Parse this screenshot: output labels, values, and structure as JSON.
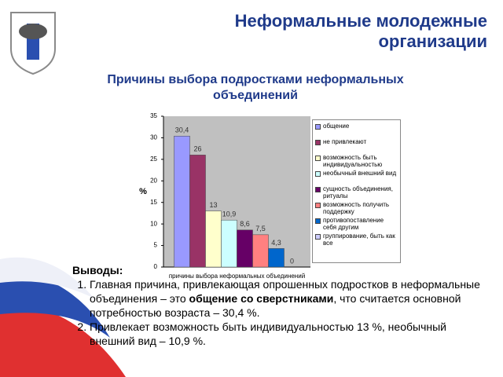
{
  "slide_title": "Неформальные молодежные организации",
  "chart_data": {
    "type": "bar",
    "title": "Причины выбора подростками неформальных объединений",
    "y_label": "%",
    "categories": [
      "причины выбора неформальных объединений"
    ],
    "ylim": [
      0,
      35
    ],
    "yticks": [
      0,
      5,
      10,
      15,
      20,
      25,
      30,
      35
    ],
    "grid": false,
    "series": [
      {
        "name": "общение",
        "color": "#9999ff",
        "values": [
          30.4
        ],
        "value_labels": [
          "30,4"
        ]
      },
      {
        "name": "не привлекают",
        "color": "#993366",
        "values": [
          26
        ],
        "value_labels": [
          "26"
        ]
      },
      {
        "name": "возможность быть индивидуальностью",
        "color": "#ffffcc",
        "values": [
          13
        ],
        "value_labels": [
          "13"
        ]
      },
      {
        "name": "необычный внешний вид",
        "color": "#ccffff",
        "values": [
          10.9
        ],
        "value_labels": [
          "10,9"
        ]
      },
      {
        "name": "сущность объединения, ритуалы",
        "color": "#660066",
        "values": [
          8.6
        ],
        "value_labels": [
          "8,6"
        ]
      },
      {
        "name": "возможность получить поддержку",
        "color": "#ff8080",
        "values": [
          7.5
        ],
        "value_labels": [
          "7,5"
        ]
      },
      {
        "name": "противопоставление себя другим",
        "color": "#0066cc",
        "values": [
          4.3
        ],
        "value_labels": [
          "4,3"
        ]
      },
      {
        "name": "группирование, быть как все",
        "color": "#ccccff",
        "values": [
          0
        ],
        "value_labels": [
          "0"
        ]
      }
    ]
  },
  "conclusions": {
    "heading": "Выводы:",
    "items": [
      [
        "Главная причина, привлекающая опрошенных подростков в неформальные объединения – это ",
        "общение со сверстниками",
        ", что считается основной потребностью возраста – 30,4 %."
      ],
      [
        "Привлекает возможность быть индивидуальностью 13 %, необычный внешний вид – 10,9 %."
      ]
    ]
  }
}
